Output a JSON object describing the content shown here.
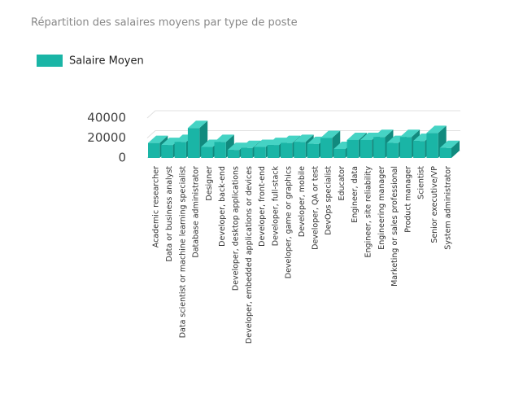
{
  "chart_data": {
    "type": "bar3d",
    "title": "Répartition des salaires moyens par type de poste",
    "categories": [
      "Academic researcher",
      "Data or business analyst",
      "Data scientist or machine learning specialist",
      "Database administrator",
      "Designer",
      "Developer, back-end",
      "Developer, desktop applications",
      "Developer, embedded applications or devices",
      "Developer, front-end",
      "Developer, full-stack",
      "Developer, game or graphics",
      "Developer, mobile",
      "Developer, QA or test",
      "DevOps specialist",
      "Educator",
      "Engineer, data",
      "Engineer, site reliability",
      "Engineering manager",
      "Marketing or sales professional",
      "Product manager",
      "Scientist",
      "Senior executive/VP",
      "System administrator"
    ],
    "series": [
      {
        "name": "Salaire Moyen",
        "color": "#1ab5a6",
        "values": [
          15000,
          13000,
          16000,
          30000,
          11000,
          16000,
          8000,
          10000,
          11000,
          13000,
          15000,
          16000,
          14000,
          20000,
          9000,
          18000,
          18000,
          21000,
          15000,
          21000,
          17000,
          25000,
          10000
        ]
      }
    ],
    "ylim": [
      0,
      40000
    ],
    "yticks": [
      0,
      20000,
      40000
    ],
    "grid": true
  }
}
